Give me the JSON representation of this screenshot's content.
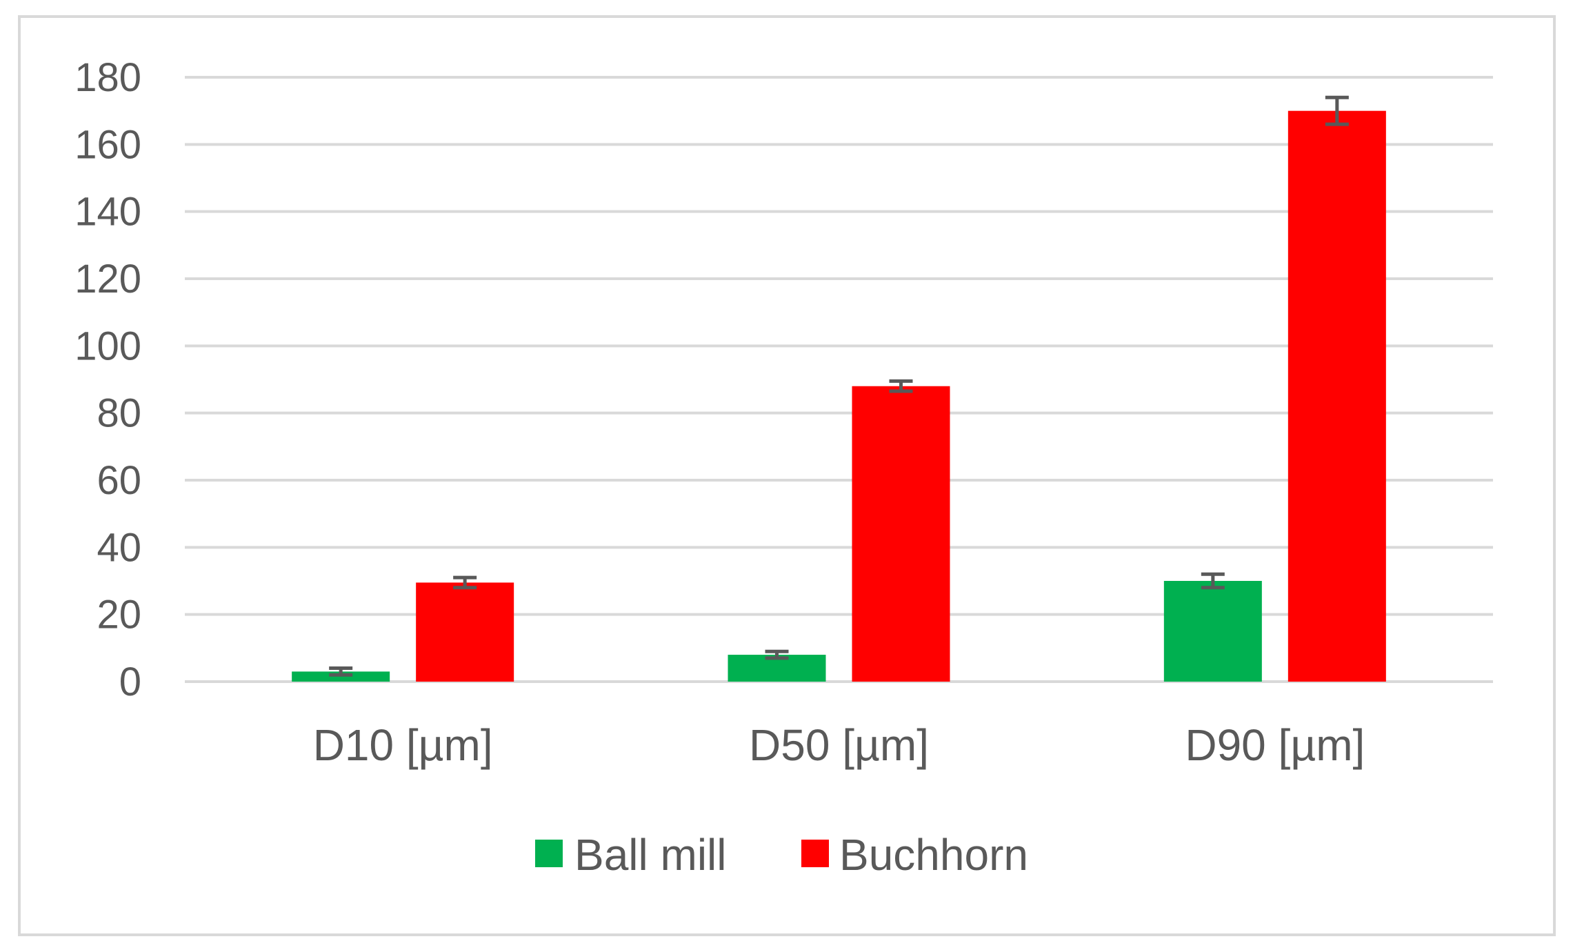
{
  "chart_data": {
    "type": "bar",
    "title": "",
    "xlabel": "",
    "ylabel": "",
    "categories": [
      "D10 [µm]",
      "D50 [µm]",
      "D90 [µm]"
    ],
    "series": [
      {
        "name": "Ball mill",
        "color": "#00b050",
        "values": [
          3,
          8,
          30
        ],
        "error": [
          1,
          1,
          2
        ]
      },
      {
        "name": "Buchhorn",
        "color": "#ff0000",
        "values": [
          29.5,
          88,
          170
        ],
        "error": [
          1.5,
          1.5,
          4
        ]
      }
    ],
    "ylim": [
      0,
      180
    ],
    "yticks": [
      "0",
      "20",
      "40",
      "60",
      "80",
      "100",
      "120",
      "140",
      "160",
      "180"
    ],
    "grid": true,
    "legend": "bottom"
  },
  "colors": {
    "gridline": "#d9d9d9",
    "text": "#595959",
    "error_bar": "#595959"
  }
}
